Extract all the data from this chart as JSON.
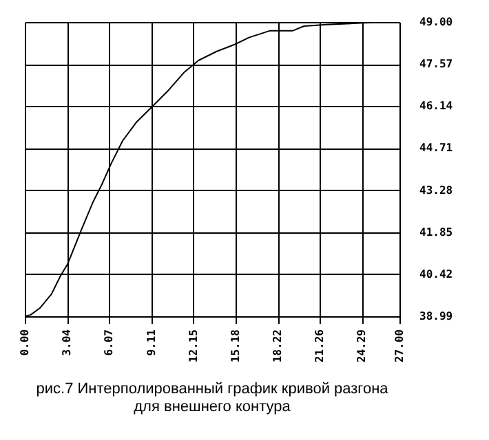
{
  "chart_data": {
    "type": "line",
    "title": "рис.7 Интерполированный график кривой разгона\nдля внешнего контура",
    "series": [
      {
        "color": "#000000",
        "x": [
          0,
          0.43,
          1.09,
          1.92,
          2.58,
          3.08,
          4.07,
          4.9,
          5.56,
          6.22,
          7.05,
          8.04,
          9.2,
          10.36,
          11.51,
          12.51,
          13.83,
          15.15,
          16.15,
          17.64,
          19.29,
          20.12,
          21.77,
          24.42,
          27.0
        ],
        "values": [
          38.99,
          39.04,
          39.27,
          39.74,
          40.37,
          40.76,
          41.92,
          42.86,
          43.48,
          44.18,
          44.96,
          45.59,
          46.13,
          46.68,
          47.3,
          47.69,
          48.0,
          48.24,
          48.47,
          48.7,
          48.7,
          48.86,
          48.91,
          48.97,
          49.0
        ]
      }
    ],
    "xlim": [
      0,
      27
    ],
    "xticks": [
      {
        "value": 0,
        "label": "0.00"
      },
      3.04,
      6.07,
      9.11,
      12.15,
      15.18,
      18.22,
      21.26,
      24.29,
      {
        "value": 27,
        "label": "27.00"
      }
    ],
    "ylim": [
      38.99,
      49
    ],
    "yticks": [
      38.99,
      40.42,
      41.85,
      43.28,
      44.71,
      46.14,
      47.57,
      {
        "value": 49,
        "label": "49.00"
      }
    ],
    "grid": true,
    "marker": "none",
    "line_style": "solid"
  }
}
